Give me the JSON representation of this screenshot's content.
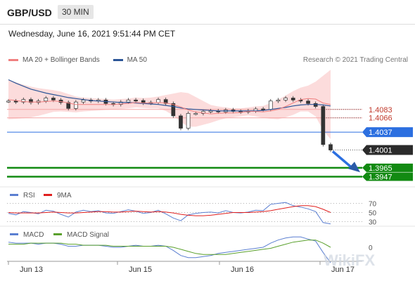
{
  "header": {
    "pair": "GBP/USD",
    "timeframe": "30 MIN"
  },
  "datetime": "Wednesday, June 16, 2021 9:51:44 PM CET",
  "legend": {
    "ma20": "MA 20 + Bollinger Bands",
    "ma50": "MA 50"
  },
  "credit": "Research © 2021 Trading Central",
  "watermark": "WikiFX",
  "colors": {
    "ma20": "#f08080",
    "ma50": "#2b5597",
    "rsi": "#5b7fd1",
    "rsi_ma": "#e0201f",
    "macd": "#5b7fd1",
    "macd_signal": "#5aa02c",
    "resist": "#c0392b",
    "pivot": "#2c6fe0",
    "support": "#128a12"
  },
  "chart_data": [
    {
      "type": "line",
      "title": "GBP/USD",
      "x_ticks": [
        "Jun 13",
        "Jun 15",
        "Jun 16",
        "Jun 17"
      ],
      "levels": [
        {
          "value": 1.4083,
          "label": "1.4083",
          "role": "resistance"
        },
        {
          "value": 1.4066,
          "label": "1.4066",
          "role": "resistance"
        },
        {
          "value": 1.4037,
          "label": "1.4037",
          "role": "pivot"
        },
        {
          "value": 1.4001,
          "label": "1.4001",
          "role": "last price"
        },
        {
          "value": 1.3965,
          "label": "1.3965",
          "role": "support"
        },
        {
          "value": 1.3947,
          "label": "1.3947",
          "role": "support"
        }
      ],
      "ylim": [
        1.3935,
        1.4165
      ],
      "series": [
        {
          "name": "MA 20 + Bollinger Bands",
          "values": [
            1.4103,
            1.4101,
            1.4099,
            1.4098,
            1.4098,
            1.4099,
            1.41,
            1.4099,
            1.4096,
            1.4093,
            1.4093,
            1.4093,
            1.4093,
            1.4093,
            1.4093,
            1.4094,
            1.4095,
            1.4097,
            1.4096,
            1.4096,
            1.4097,
            1.4096,
            1.4093,
            1.4088,
            1.4082,
            1.4078,
            1.4076,
            1.4074,
            1.4075,
            1.4076,
            1.4076,
            1.4077,
            1.4079,
            1.4079,
            1.4078,
            1.408,
            1.4083,
            1.4089,
            1.4096,
            1.4103,
            1.4105,
            1.4104,
            1.4096,
            1.4093
          ]
        },
        {
          "name": "MA 50",
          "values": [
            1.4143,
            1.4136,
            1.413,
            1.4124,
            1.412,
            1.4116,
            1.4113,
            1.411,
            1.4107,
            1.4105,
            1.4103,
            1.4101,
            1.41,
            1.4099,
            1.4098,
            1.4097,
            1.4097,
            1.4096,
            1.4095,
            1.4094,
            1.4093,
            1.4091,
            1.4089,
            1.4086,
            1.4084,
            1.4083,
            1.4082,
            1.4081,
            1.408,
            1.408,
            1.408,
            1.408,
            1.408,
            1.408,
            1.4081,
            1.4083,
            1.4085,
            1.4087,
            1.409,
            1.4092,
            1.4093,
            1.4093,
            1.4092,
            1.409
          ]
        },
        {
          "name": "Price",
          "values": [
            1.41,
            1.4098,
            1.4103,
            1.4097,
            1.41,
            1.4106,
            1.4102,
            1.4097,
            1.4085,
            1.4098,
            1.4102,
            1.41,
            1.4102,
            1.4095,
            1.4093,
            1.4098,
            1.4102,
            1.4101,
            1.4096,
            1.4097,
            1.4103,
            1.4095,
            1.407,
            1.4045,
            1.4075,
            1.4075,
            1.4079,
            1.408,
            1.4078,
            1.4082,
            1.4079,
            1.4078,
            1.408,
            1.4084,
            1.4083,
            1.41,
            1.4102,
            1.4106,
            1.4102,
            1.41,
            1.4095,
            1.4089,
            1.4012,
            1.4001
          ]
        }
      ]
    },
    {
      "type": "line",
      "title": "RSI",
      "y_ticks": [
        70,
        50,
        30
      ],
      "ylim": [
        20,
        80
      ],
      "series": [
        {
          "name": "RSI",
          "values": [
            48,
            45,
            52,
            50,
            47,
            55,
            53,
            46,
            40,
            51,
            55,
            52,
            54,
            49,
            48,
            52,
            56,
            53,
            48,
            50,
            55,
            47,
            38,
            32,
            45,
            48,
            50,
            51,
            49,
            54,
            50,
            49,
            51,
            55,
            54,
            68,
            70,
            72,
            65,
            62,
            58,
            52,
            28,
            25
          ]
        },
        {
          "name": "9MA",
          "values": [
            50,
            49,
            49,
            49,
            49,
            50,
            51,
            50,
            49,
            49,
            50,
            51,
            52,
            52,
            51,
            51,
            52,
            53,
            52,
            51,
            52,
            51,
            49,
            46,
            44,
            43,
            43,
            44,
            46,
            48,
            50,
            50,
            50,
            51,
            52,
            54,
            57,
            60,
            63,
            65,
            65,
            63,
            57,
            50
          ]
        }
      ]
    },
    {
      "type": "line",
      "title": "MACD",
      "y_ticks": [
        0
      ],
      "series": [
        {
          "name": "MACD",
          "values": [
            5e-05,
            4e-05,
            4e-05,
            4e-05,
            3e-05,
            4e-05,
            4e-05,
            3e-05,
            1e-05,
            1e-05,
            2e-05,
            2e-05,
            2e-05,
            1e-05,
            0.0,
            0.0,
            1e-05,
            2e-05,
            1e-05,
            1e-05,
            2e-05,
            1e-05,
            -3e-05,
            -8e-05,
            -0.0001,
            -0.0001,
            -9e-05,
            -8e-05,
            -6e-05,
            -5e-05,
            -4e-05,
            -3e-05,
            -2e-05,
            -1e-05,
            0.0,
            4e-05,
            7e-05,
            9e-05,
            0.0001,
            0.0001,
            8e-05,
            6e-05,
            -5e-05,
            -0.00015
          ]
        },
        {
          "name": "MACD Signal",
          "values": [
            3e-05,
            3e-05,
            3e-05,
            4e-05,
            4e-05,
            4e-05,
            4e-05,
            4e-05,
            3e-05,
            3e-05,
            2e-05,
            2e-05,
            2e-05,
            2e-05,
            1e-05,
            1e-05,
            1e-05,
            1e-05,
            1e-05,
            1e-05,
            1e-05,
            1e-05,
            0.0,
            -2e-05,
            -4e-05,
            -6e-05,
            -7e-05,
            -7e-05,
            -7e-05,
            -7e-05,
            -6e-05,
            -5e-05,
            -4e-05,
            -3e-05,
            -2e-05,
            -1e-05,
            1e-05,
            3e-05,
            5e-05,
            6e-05,
            7e-05,
            7e-05,
            4e-05,
            0.0
          ]
        }
      ]
    }
  ]
}
